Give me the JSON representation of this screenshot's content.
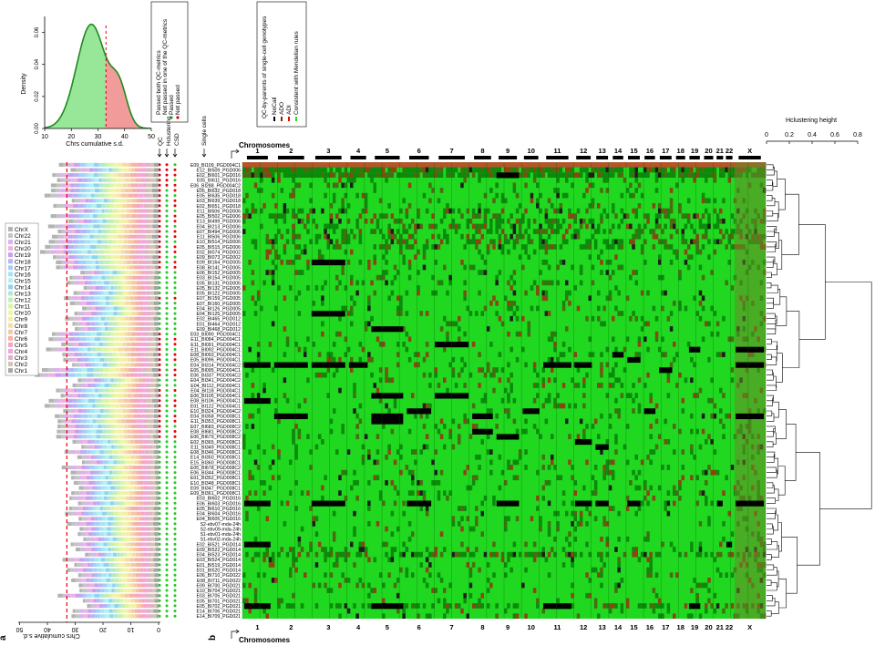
{
  "panel_labels": {
    "a": "a",
    "b": "b"
  },
  "density_plot": {
    "ylabel": "Density",
    "xlabel": "Chrs cumulative s.d.",
    "x_ticks": [
      "10",
      "20",
      "30",
      "40",
      "50"
    ],
    "y_ticks": [
      "0.00",
      "0.02",
      "0.04",
      "0.06"
    ],
    "xlim": [
      10,
      50
    ],
    "ylim": [
      0,
      0.07
    ],
    "threshold": 33,
    "passed_color": "#7ee07e",
    "failed_color": "#ef8a8a",
    "curve_color": "#1e8a1e",
    "threshold_color": "#e8000d"
  },
  "qc_legend": {
    "title_items": [
      "Passed both QC-metrics",
      "Not passed in one of the QC-metrics"
    ],
    "items": [
      {
        "label": "Passed",
        "color": "#22cc22"
      },
      {
        "label": "Not passed",
        "color": "#e8000d"
      }
    ]
  },
  "qc_columns": [
    "QC",
    "Hclustering",
    "CSD"
  ],
  "single_cells_label": "Single cells",
  "genotype_legend": {
    "title": "QC-by-parents of single-cell genotypes",
    "items": [
      {
        "label": "NoCall",
        "color": "#000000"
      },
      {
        "label": "ADO",
        "color": "#8b2500"
      },
      {
        "label": "ADI",
        "color": "#e8000d"
      },
      {
        "label": "Consistent with Mendelian rules",
        "color": "#22dd22"
      }
    ]
  },
  "chromosome_axis_title": "Chromosomes",
  "chromosomes": [
    "1",
    "2",
    "3",
    "4",
    "5",
    "6",
    "7",
    "8",
    "9",
    "10",
    "11",
    "12",
    "13",
    "14",
    "15",
    "16",
    "17",
    "18",
    "19",
    "20",
    "21",
    "22",
    "X"
  ],
  "hclust": {
    "title": "Hclustering height",
    "ticks": [
      "0",
      "0.2",
      "0.4",
      "0.6",
      "0.8"
    ]
  },
  "chr_legend": [
    {
      "label": "ChrX",
      "color": "#b3b3b3"
    },
    {
      "label": "Chr22",
      "color": "#c4c4c4"
    },
    {
      "label": "Chr21",
      "color": "#d9b3ef"
    },
    {
      "label": "Chr20",
      "color": "#f0b3d9"
    },
    {
      "label": "Chr19",
      "color": "#c9a0f0"
    },
    {
      "label": "Chr18",
      "color": "#b5b5f5"
    },
    {
      "label": "Chr17",
      "color": "#a6cff5"
    },
    {
      "label": "Chr16",
      "color": "#a6e4f5"
    },
    {
      "label": "Chr15",
      "color": "#b3f0f0"
    },
    {
      "label": "Chr14",
      "color": "#8fd3f0"
    },
    {
      "label": "Chr13",
      "color": "#b3e8d0"
    },
    {
      "label": "Chr12",
      "color": "#c2f0b3"
    },
    {
      "label": "Chr11",
      "color": "#d9f5a6"
    },
    {
      "label": "Chr10",
      "color": "#f0f5a6"
    },
    {
      "label": "Chr9",
      "color": "#f5eea6"
    },
    {
      "label": "Chr8",
      "color": "#f5dca6"
    },
    {
      "label": "Chr7",
      "color": "#f5c8a6"
    },
    {
      "label": "Chr6",
      "color": "#f5b3a6"
    },
    {
      "label": "Chr5",
      "color": "#f5a6c0"
    },
    {
      "label": "Chr4",
      "color": "#f2a6d9"
    },
    {
      "label": "Chr3",
      "color": "#e0b3c4"
    },
    {
      "label": "Chr2",
      "color": "#d4c4b3"
    },
    {
      "label": "Chr1",
      "color": "#a6a6a6"
    }
  ],
  "csd_axis": {
    "label": "Chrs cumulative s.d.",
    "ticks": [
      "50",
      "40",
      "30",
      "20",
      "10",
      "0"
    ],
    "threshold": 33
  },
  "samples": [
    "E09_BI109_PGD004C1",
    "E12_BI509_PGD006",
    "E02_BI601_PGD016",
    "E05_BI611_PGD016",
    "E06_BI288_PGD004C2",
    "E05_BI632_PGD018",
    "E05_BI635_PGD018",
    "E03_BI639_PGD018",
    "E02_BI651_PGD018",
    "E11_BI506_PGD006",
    "E05_BI502_PGD006",
    "E13_BI499_PGD006",
    "E04_BI213_PGD006",
    "E07_BI494_PGD006",
    "E11_BI506_PGD006",
    "E10_BI514_PGD006",
    "E05_BI515_PGD006",
    "E02_BI074_PGD002",
    "E09_BI073_PGD002",
    "E09_BI164_PGD005",
    "E08_BI141_PGD005",
    "E06_BI152_PGD005",
    "E03_BI154_PGD005",
    "E05_BI131_PGD005",
    "E05_BI132_PGD005",
    "E05_BI122_PGD005",
    "E07_BI159_PGD005",
    "E07_BI160_PGD005",
    "E04_BI126_PGD005",
    "E04_BI125_PGD005",
    "E02_BI465_PGD012",
    "E01_BI464_PGD012",
    "E09_BI468_PGD012",
    "E03_BI090_PGD004C1",
    "E11_BI084_PGD004C1",
    "E11_BI091_PGD004C1",
    "E11_BI092_PGD004C1",
    "E08_BI093_PGD004C1",
    "E05_BI096_PGD004C1",
    "E04_BI314_PGD004C2",
    "E05_BI095_PGD004C1",
    "E06_BI337_PGD004C2",
    "E04_BI341_PGD004C2",
    "E04_BI112_PGD004C1",
    "E04_BI118_PGD004C1",
    "E06_BI105_PGD004C1",
    "E08_BI106_PGD004C1",
    "E01_BI122_PGD004C1",
    "E10_BI324_PGD004C2",
    "E04_BI358_PGD008C1",
    "E11_BI353_PGD008C1",
    "E07_BI683_PGD008C2",
    "E08_BI681_PGD008C2",
    "E06_BI679_PGD008C2",
    "E02_BI365_PGD008C1",
    "E11_BI349_PGD008C1",
    "E08_BI346_PGD008C1",
    "E14_BI350_PGD008C1",
    "E15_BI360_PGD008C1",
    "E05_BI678_PGD008C2",
    "E06_BI344_PGD008C1",
    "E01_BI352_PGD008C1",
    "E10_BI348_PGD008C1",
    "E09_BI347_PGD008C1",
    "E09_BI361_PGD008C1",
    "E03_BI602_PGD016",
    "E06_BI603_PGD016",
    "E05_BI610_PGD016",
    "E04_BI604_PGD016",
    "E04_BI605_PGD016",
    "S2-ebv07-mda-24h",
    "S2-ebv09-mda-24h",
    "S1-ebv01-mda-24h",
    "S1-ebv02-mda-24h",
    "E02_BI521_PGD014",
    "E09_BI522_PGD014",
    "E04_BI523_PGD014",
    "E03_BI524_PGD014",
    "E01_BI519_PGD014",
    "E01_BI520_PGD014",
    "E06_BI710_PGD022",
    "E08_BI711_PGD022",
    "E09_BI700_PGD021",
    "E10_BI704_PGD021",
    "E03_BI705_PGD021",
    "E05_BI701_PGD021",
    "E05_BI702_PGD021",
    "E14_BI706_PGD021",
    "E14_BI709_PGD021"
  ],
  "chart_data": {
    "type": "heatmap",
    "title": "",
    "xlabel": "Chromosomes",
    "ylabel": "Single cells",
    "categories": [
      "1",
      "2",
      "3",
      "4",
      "5",
      "6",
      "7",
      "8",
      "9",
      "10",
      "11",
      "12",
      "13",
      "14",
      "15",
      "16",
      "17",
      "18",
      "19",
      "20",
      "21",
      "22",
      "X"
    ],
    "legend": [
      "NoCall",
      "ADO",
      "ADI",
      "Consistent with Mendelian rules"
    ],
    "rows": 89
  }
}
